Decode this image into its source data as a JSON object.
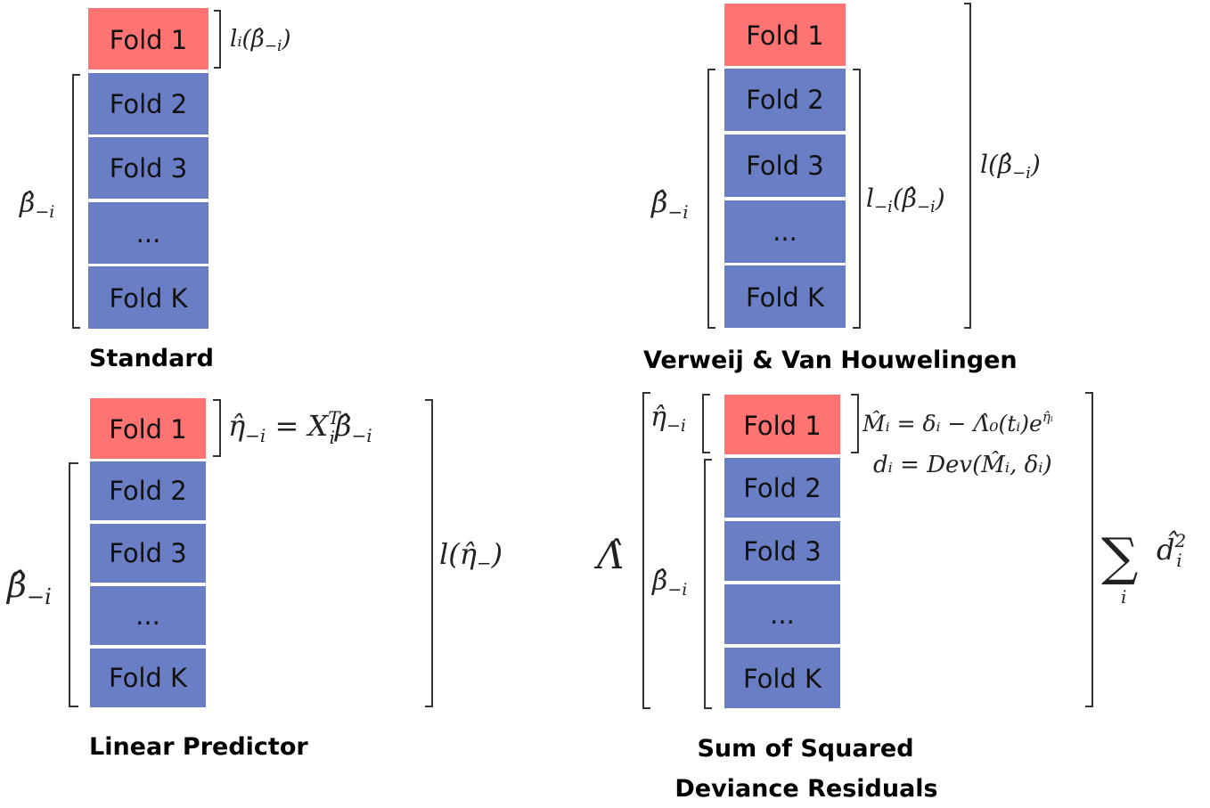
{
  "colors": {
    "holdout_fold": "#FF7373",
    "train_fold": "#6A7EC6",
    "text": "#111111"
  },
  "panels": {
    "standard": {
      "caption": "Standard",
      "folds": [
        "Fold 1",
        "Fold 2",
        "Fold 3",
        "...",
        "Fold K"
      ],
      "beta_label": "β̂",
      "beta_sub": "−i",
      "loss_label": "lᵢ(β̂",
      "loss_sub": "−i",
      "loss_close": ")"
    },
    "verweij": {
      "caption": "Verweij & Van Houwelingen",
      "folds": [
        "Fold 1",
        "Fold 2",
        "Fold 3",
        "...",
        "Fold K"
      ],
      "beta_label": "β̂",
      "beta_sub": "−i",
      "inner_loss": "l",
      "inner_loss_sub": "−i",
      "inner_loss_arg": "(β̂",
      "inner_loss_arg_sub": "−i",
      "inner_close": ")",
      "outer_loss": "l(β̂",
      "outer_loss_sub": "−i",
      "outer_close": ")"
    },
    "linear_predictor": {
      "caption": "Linear Predictor",
      "folds": [
        "Fold 1",
        "Fold 2",
        "Fold 3",
        "...",
        "Fold K"
      ],
      "beta_label": "β̂",
      "beta_sub": "−i",
      "eta_lhs": "η̂",
      "eta_lhs_sub": "−i",
      "eta_eq": " = X",
      "eta_x_sub": "i",
      "eta_x_sup": "T",
      "eta_rhs": "β̂",
      "eta_rhs_sub": "−i",
      "outer_loss": "l(η̂",
      "outer_loss_sub": "−",
      "outer_close": ")"
    },
    "deviance": {
      "caption_line1": "Sum of Squared",
      "caption_line2": "Deviance Residuals",
      "folds": [
        "Fold 1",
        "Fold 2",
        "Fold 3",
        "...",
        "Fold K"
      ],
      "lambda_label": "Λ̂",
      "eta_label": "η̂",
      "eta_sub": "−i",
      "beta_label": "β̂",
      "beta_sub": "−i",
      "martingale": "M̂ᵢ = δᵢ − Λ̂₀(tᵢ)e",
      "martingale_sup": "η̂ᵢ",
      "deviance_eq": "dᵢ = Dev(M̂ᵢ, δᵢ)",
      "sum_symbol": "∑",
      "sum_index": "i",
      "sum_term": "d̂",
      "sum_term_sub": "i",
      "sum_term_sup": "2"
    }
  }
}
